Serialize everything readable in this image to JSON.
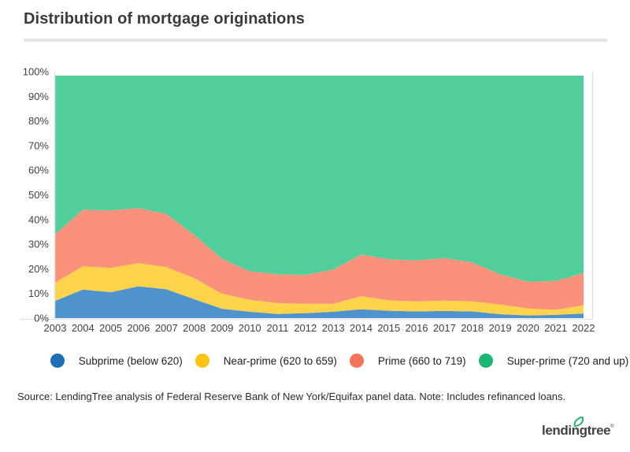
{
  "page": {
    "title": "Distribution of mortgage originations",
    "source_note": "Source: LendingTree analysis of Federal Reserve Bank of New York/Equifax panel data. Note: Includes refinanced loans.",
    "logo_text": "lendingtree",
    "logo_reg_mark": "®"
  },
  "colors": {
    "title_text": "#3b3b3b",
    "axis_line": "#e2e2e2",
    "axis_label": "#3f3f3f",
    "leaf_green": "#2eb873",
    "logo_text": "#3f4348"
  },
  "chart_data": {
    "type": "area",
    "stacked": true,
    "title": "Distribution of mortgage originations",
    "x": [
      2003,
      2004,
      2005,
      2006,
      2007,
      2008,
      2009,
      2010,
      2011,
      2012,
      2013,
      2014,
      2015,
      2016,
      2017,
      2018,
      2019,
      2020,
      2021,
      2022
    ],
    "series": [
      {
        "id": "subprime",
        "name": "Subprime (below 620)",
        "area_color": "#4e92ce",
        "legend_color": "#1a6fb5",
        "values": [
          7.0,
          11.6,
          10.5,
          12.9,
          11.7,
          7.7,
          3.8,
          2.6,
          1.7,
          2.0,
          2.6,
          3.6,
          3.0,
          2.7,
          2.9,
          2.7,
          1.6,
          1.1,
          1.3,
          1.9
        ]
      },
      {
        "id": "near-prime",
        "name": "Near-prime (620 to 659)",
        "area_color": "#fbd44c",
        "legend_color": "#f9c413",
        "values": [
          7.4,
          9.4,
          9.9,
          9.4,
          9.0,
          8.5,
          6.1,
          4.8,
          4.4,
          3.8,
          3.2,
          5.3,
          4.2,
          4.1,
          4.2,
          4.1,
          3.9,
          2.8,
          2.1,
          3.3
        ]
      },
      {
        "id": "prime",
        "name": "Prime (660 to 719)",
        "area_color": "#f9917b",
        "legend_color": "#f4735a",
        "values": [
          19.6,
          23.0,
          23.3,
          22.4,
          21.6,
          17.6,
          14.2,
          11.6,
          11.7,
          11.7,
          13.9,
          16.9,
          16.7,
          16.6,
          17.3,
          15.8,
          12.3,
          10.9,
          11.7,
          13.1
        ]
      },
      {
        "id": "super-prime",
        "name": "Super-prime (720 and up)",
        "area_color": "#50cf9d",
        "legend_color": "#1bb674",
        "values": [
          64.4,
          54.4,
          54.7,
          53.7,
          56.1,
          64.6,
          74.3,
          79.4,
          80.6,
          80.9,
          78.7,
          72.6,
          74.5,
          75.0,
          74.0,
          75.8,
          80.6,
          83.6,
          83.3,
          80.1
        ]
      }
    ],
    "y_tick_labels": [
      "0%",
      "10%",
      "20%",
      "30%",
      "40%",
      "50%",
      "60%",
      "70%",
      "80%",
      "90%",
      "100%"
    ],
    "ylim": [
      0,
      100
    ],
    "grid": false,
    "legend_position": "bottom"
  }
}
